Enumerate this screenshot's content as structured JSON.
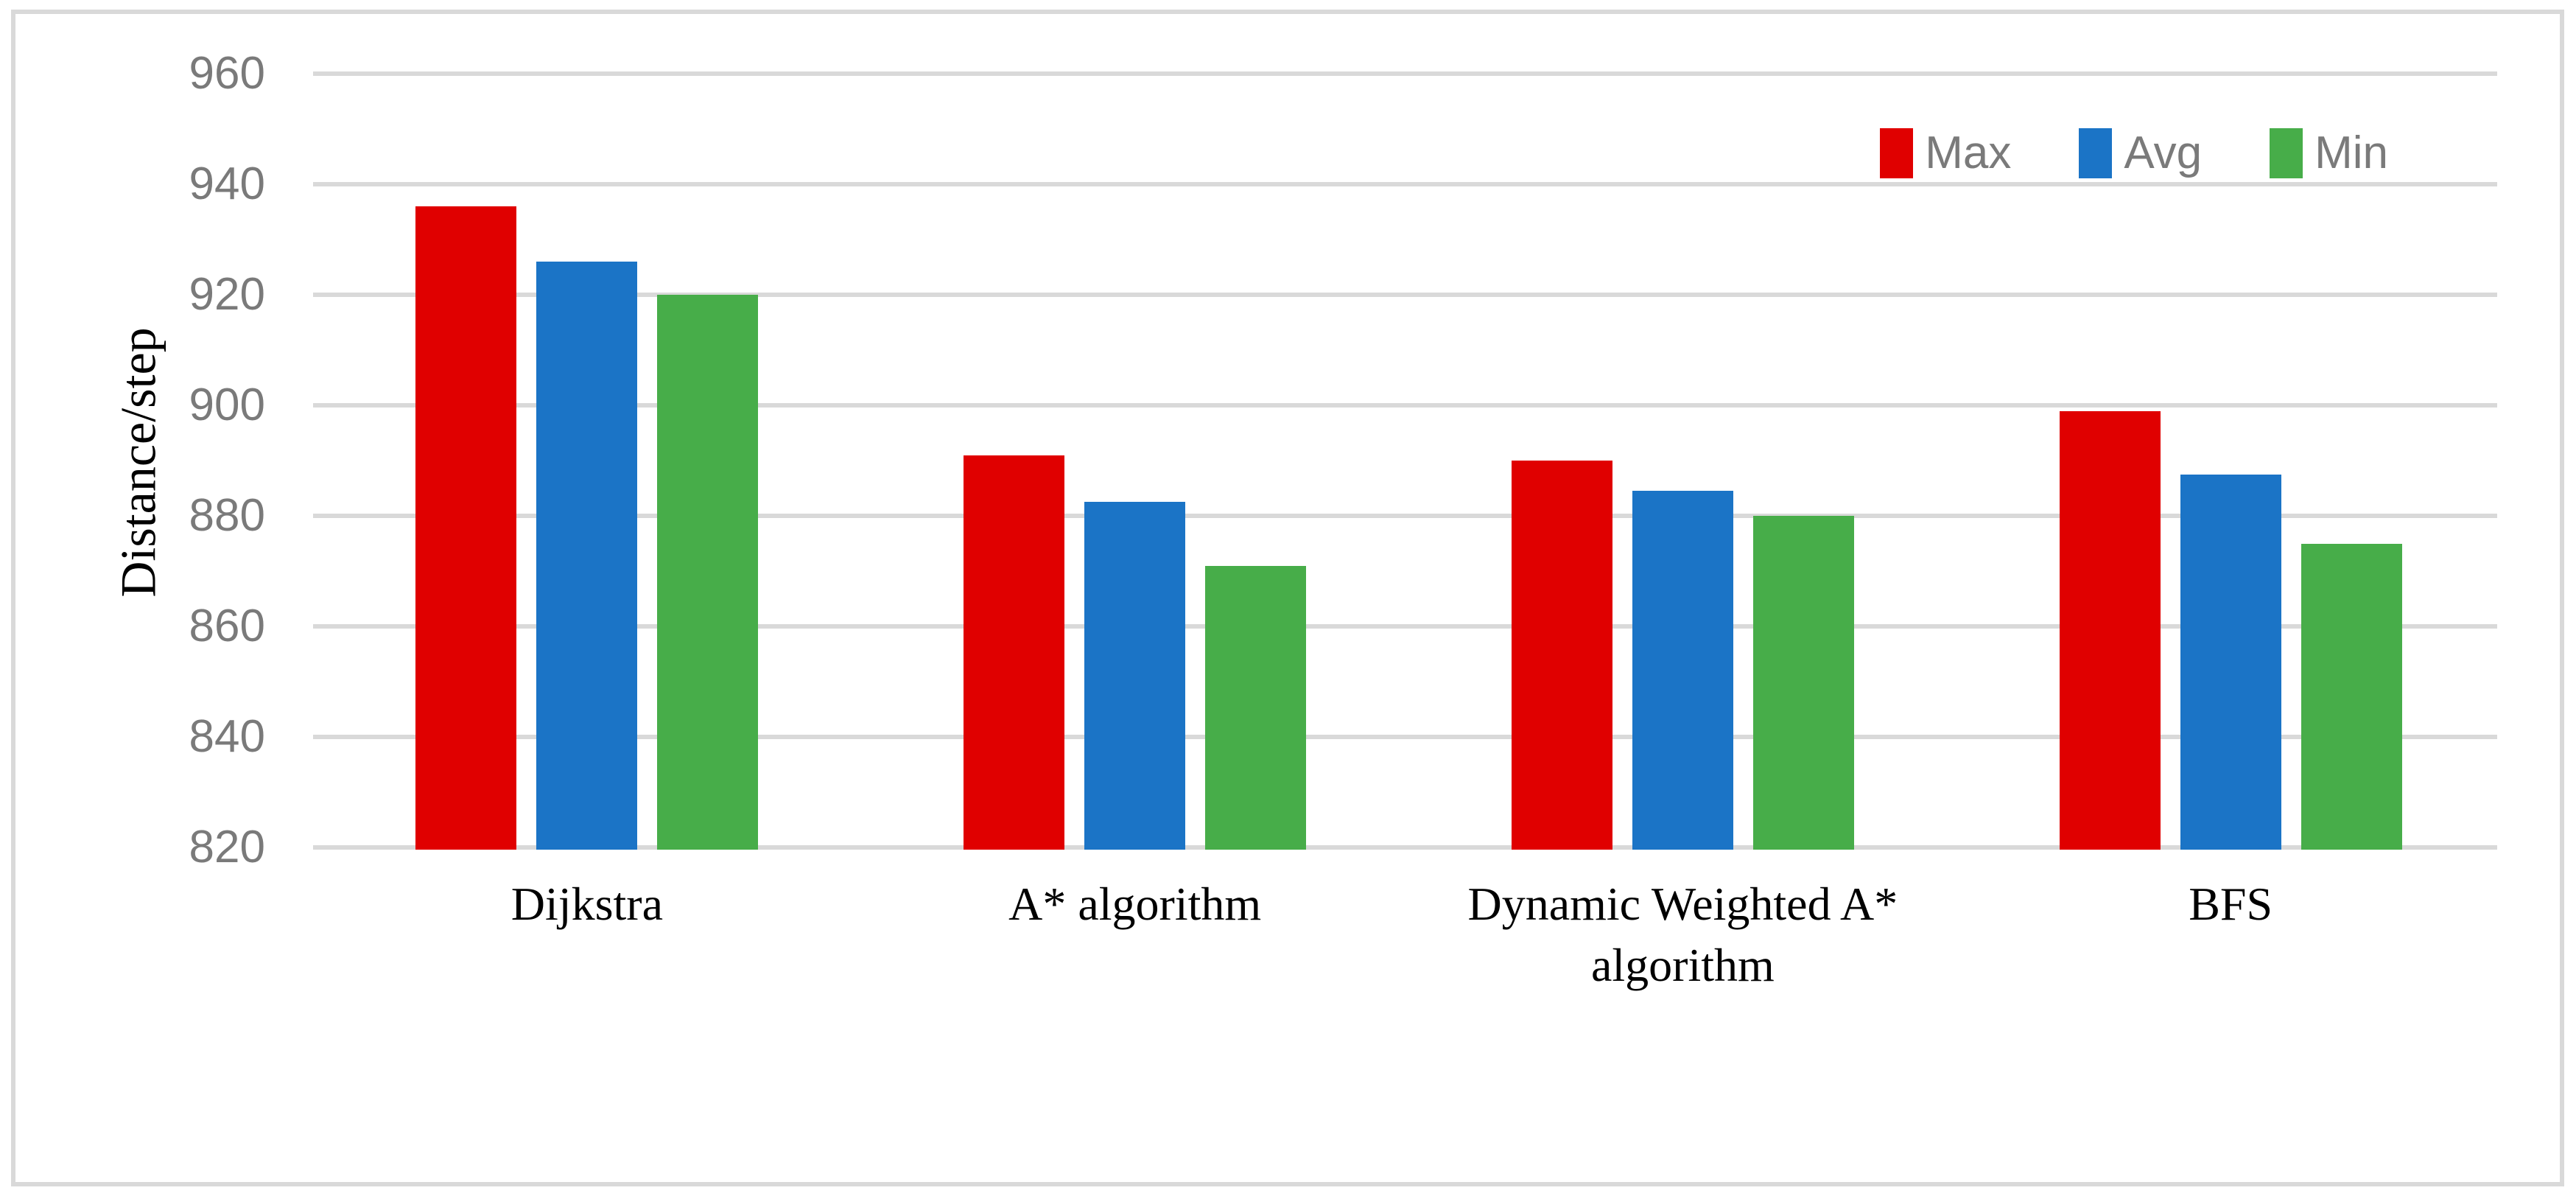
{
  "chart_data": {
    "type": "bar",
    "title": "",
    "xlabel": "",
    "ylabel": "Distance/step",
    "ylim": [
      820,
      960
    ],
    "yticks": [
      960,
      940,
      920,
      900,
      880,
      860,
      840,
      820
    ],
    "grid": true,
    "legend_position": "top-right-inside",
    "categories": [
      "Dijkstra",
      "A* algorithm",
      "Dynamic Weighted A* algorithm",
      "BFS"
    ],
    "series": [
      {
        "name": "Max",
        "color": "#E00000",
        "values": [
          936,
          891,
          890,
          899
        ]
      },
      {
        "name": "Avg",
        "color": "#1B74C6",
        "values": [
          926,
          882.5,
          884.5,
          887.5
        ]
      },
      {
        "name": "Min",
        "color": "#47AD49",
        "values": [
          920,
          871,
          880,
          875
        ]
      }
    ],
    "colors": {
      "gridline": "#D9D9D9",
      "frame_border": "#D9D9D9",
      "tick_label": "#7A7A7A",
      "legend_label": "#7A7A7A",
      "axis_text": "#000000",
      "background": "#FFFFFF"
    }
  }
}
